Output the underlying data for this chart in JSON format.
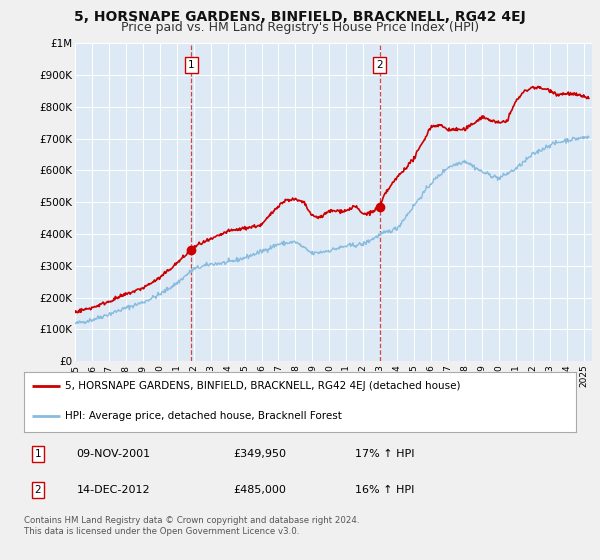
{
  "title": "5, HORSNAPE GARDENS, BINFIELD, BRACKNELL, RG42 4EJ",
  "subtitle": "Price paid vs. HM Land Registry's House Price Index (HPI)",
  "ylim": [
    0,
    1000000
  ],
  "xlim_start": 1995.0,
  "xlim_end": 2025.5,
  "background_color": "#f0f0f0",
  "plot_bg_color": "#ddeaf5",
  "grid_color": "#ffffff",
  "line1_color": "#cc0000",
  "line2_color": "#88bbdd",
  "marker_color": "#cc0000",
  "vline_color": "#cc3333",
  "title_fontsize": 10,
  "subtitle_fontsize": 9,
  "ytick_labels": [
    "£0",
    "£100K",
    "£200K",
    "£300K",
    "£400K",
    "£500K",
    "£600K",
    "£700K",
    "£800K",
    "£900K",
    "£1M"
  ],
  "ytick_values": [
    0,
    100000,
    200000,
    300000,
    400000,
    500000,
    600000,
    700000,
    800000,
    900000,
    1000000
  ],
  "xtick_values": [
    1995,
    1996,
    1997,
    1998,
    1999,
    2000,
    2001,
    2002,
    2003,
    2004,
    2005,
    2006,
    2007,
    2008,
    2009,
    2010,
    2011,
    2012,
    2013,
    2014,
    2015,
    2016,
    2017,
    2018,
    2019,
    2020,
    2021,
    2022,
    2023,
    2024,
    2025
  ],
  "transaction1_x": 2001.86,
  "transaction1_y": 349950,
  "transaction1_label": "1",
  "transaction2_x": 2012.96,
  "transaction2_y": 485000,
  "transaction2_label": "2",
  "legend_line1": "5, HORSNAPE GARDENS, BINFIELD, BRACKNELL, RG42 4EJ (detached house)",
  "legend_line2": "HPI: Average price, detached house, Bracknell Forest",
  "ann1_date": "09-NOV-2001",
  "ann1_price": "£349,950",
  "ann1_hpi": "17% ↑ HPI",
  "ann2_date": "14-DEC-2012",
  "ann2_price": "£485,000",
  "ann2_hpi": "16% ↑ HPI",
  "footer": "Contains HM Land Registry data © Crown copyright and database right 2024.\nThis data is licensed under the Open Government Licence v3.0."
}
